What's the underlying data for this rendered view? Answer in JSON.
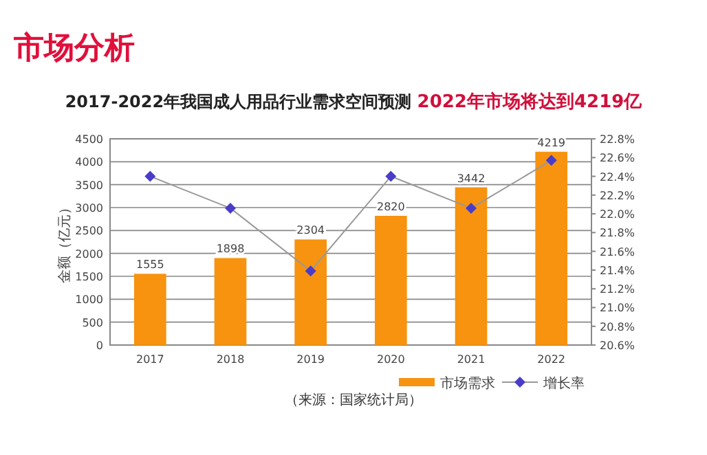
{
  "chart_data": {
    "type": "bar",
    "title": "市场分析",
    "subtitle": "2017-2022年我国成人用品行业需求空间预测",
    "annotations": [
      "2022年市场将达到4219亿",
      "（来源：国家统计局）"
    ],
    "ylabel": "金额（亿元）",
    "categories": [
      "2017",
      "2018",
      "2019",
      "2020",
      "2021",
      "2022"
    ],
    "series": [
      {
        "name": "市场需求",
        "color": "#f7930f",
        "values": [
          1555,
          1898,
          2304,
          2820,
          3442,
          4219
        ],
        "value_labels": [
          "1555",
          "1898",
          "2304",
          "2820",
          "3442",
          "4219"
        ]
      },
      {
        "name": "增长率",
        "type": "line",
        "axis": "y2",
        "color": "#4a3cc8",
        "marker": "diamond",
        "values": [
          22.4,
          22.06,
          21.39,
          22.4,
          22.06,
          22.57
        ]
      }
    ],
    "ylim": [
      0,
      4500
    ],
    "yticks": [
      0,
      500,
      1000,
      1500,
      2000,
      2500,
      3000,
      3500,
      4000,
      4500
    ],
    "y2lim": [
      20.6,
      22.8
    ],
    "y2ticks": [
      {
        "value": 20.6,
        "label": "20.6%"
      },
      {
        "value": 20.8,
        "label": "20.8%"
      },
      {
        "value": 21.0,
        "label": "21.0%"
      },
      {
        "value": 21.2,
        "label": "21.2%"
      },
      {
        "value": 21.4,
        "label": "21.4%"
      },
      {
        "value": 21.6,
        "label": "21.6%"
      },
      {
        "value": 21.8,
        "label": "21.8%"
      },
      {
        "value": 22.0,
        "label": "22.0%"
      },
      {
        "value": 22.2,
        "label": "22.2%"
      },
      {
        "value": 22.4,
        "label": "22.4%"
      },
      {
        "value": 22.6,
        "label": "22.6%"
      },
      {
        "value": 22.8,
        "label": "22.8%"
      }
    ],
    "grid": "y",
    "legend": "bottom"
  }
}
